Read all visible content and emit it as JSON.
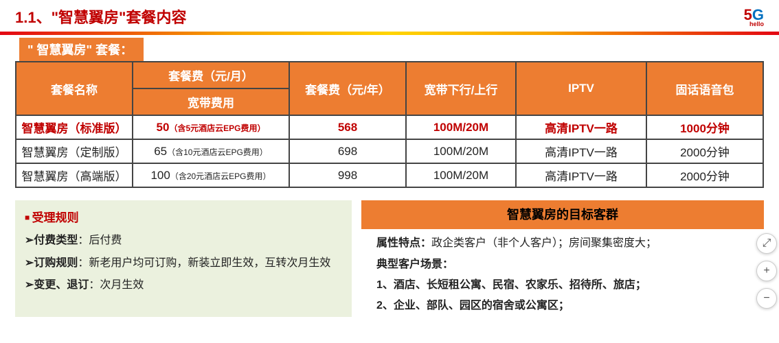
{
  "header": {
    "title": "1.1、\"智慧翼房\"套餐内容",
    "logo_5": "5",
    "logo_g": "G",
    "logo_sub": "hello"
  },
  "badge": "\" 智慧翼房\" 套餐：",
  "table": {
    "col_widths": [
      "170px",
      "228px",
      "170px",
      "160px",
      "190px",
      "170px"
    ],
    "headers": {
      "name": "套餐名称",
      "fee_month_top": "套餐费（元/月）",
      "fee_month_sub": "宽带费用",
      "fee_year": "套餐费（元/年）",
      "bandwidth": "宽带下行/上行",
      "iptv": "IPTV",
      "voice": "固话语音包"
    },
    "rows": [
      {
        "name": "智慧翼房（标准版）",
        "fee_month": "50",
        "epg_note": "（含5元酒店云EPG费用）",
        "fee_year": "568",
        "bandwidth": "100M/20M",
        "iptv": "高清IPTV一路",
        "voice": "1000分钟",
        "highlight": true
      },
      {
        "name": "智慧翼房（定制版）",
        "fee_month": "65",
        "epg_note": "（含10元酒店云EPG费用）",
        "fee_year": "698",
        "bandwidth": "100M/20M",
        "iptv": "高清IPTV一路",
        "voice": "2000分钟",
        "highlight": false
      },
      {
        "name": "智慧翼房（高端版）",
        "fee_month": "100",
        "epg_note": "（含20元酒店云EPG费用）",
        "fee_year": "998",
        "bandwidth": "100M/20M",
        "iptv": "高清IPTV一路",
        "voice": "2000分钟",
        "highlight": false
      }
    ]
  },
  "rules": {
    "title": "受理规则",
    "pay_label": "付费类型",
    "pay_value": "：后付费",
    "order_label": "订购规则",
    "order_value": "：新老用户均可订购，新装立即生效，互转次月生效",
    "change_label": "变更、退订",
    "change_value": "：次月生效"
  },
  "target": {
    "header": "智慧翼房的目标客群",
    "attr_label": "属性特点：",
    "attr_value": "政企类客户（非个人客户）；房间聚集密度大；",
    "scene_label": "典型客户场景：",
    "scene_1": "1、酒店、长短租公寓、民宿、农家乐、招待所、旅店；",
    "scene_2": "2、企业、部队、园区的宿舍或公寓区；"
  },
  "controls": {
    "fit": "⤢",
    "zoom_in": "+",
    "zoom_out": "−"
  },
  "colors": {
    "accent_orange": "#ed7d31",
    "accent_red": "#c00000",
    "panel_green": "#ebf1de"
  }
}
